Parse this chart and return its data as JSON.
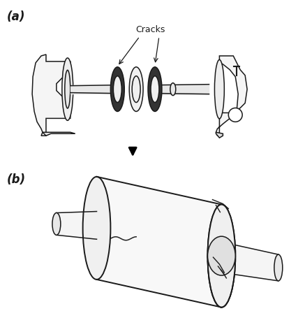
{
  "label_a": "(a)",
  "label_b": "(b)",
  "cracks_label": "Cracks",
  "bg_color": "#ffffff",
  "line_color": "#1a1a1a",
  "figsize": [
    4.37,
    4.56
  ],
  "dpi": 100
}
